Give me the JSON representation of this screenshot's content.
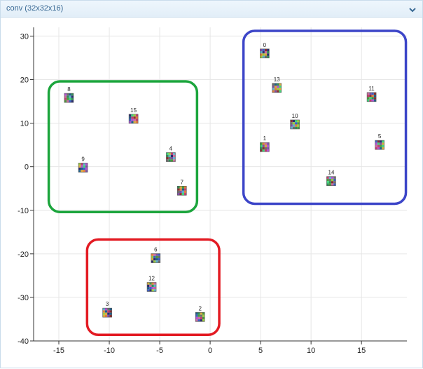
{
  "panel": {
    "title": "conv (32x32x16)",
    "collapse_icon": "chevron-down-icon"
  },
  "chart_data": {
    "type": "scatter",
    "title": "",
    "xlabel": "",
    "ylabel": "",
    "xlim": [
      -17.5,
      19.5
    ],
    "ylim": [
      -40,
      32
    ],
    "grid": true,
    "x_ticks": [
      -15,
      -10,
      -5,
      0,
      5,
      10,
      15
    ],
    "y_ticks": [
      30,
      20,
      10,
      0,
      -10,
      -20,
      -30,
      -40
    ],
    "points": [
      {
        "label": "0",
        "x": 5.4,
        "y": 26.0
      },
      {
        "label": "1",
        "x": 5.4,
        "y": 4.5
      },
      {
        "label": "2",
        "x": -1.0,
        "y": -34.5
      },
      {
        "label": "3",
        "x": -10.2,
        "y": -33.5
      },
      {
        "label": "4",
        "x": -3.9,
        "y": 2.2
      },
      {
        "label": "5",
        "x": 16.8,
        "y": 5.0
      },
      {
        "label": "6",
        "x": -5.4,
        "y": -21.0
      },
      {
        "label": "7",
        "x": -2.8,
        "y": -5.5
      },
      {
        "label": "8",
        "x": -14.0,
        "y": 15.8
      },
      {
        "label": "9",
        "x": -12.6,
        "y": -0.2
      },
      {
        "label": "10",
        "x": 8.4,
        "y": 9.7
      },
      {
        "label": "11",
        "x": 16.0,
        "y": 16.0
      },
      {
        "label": "12",
        "x": -5.8,
        "y": -27.6
      },
      {
        "label": "13",
        "x": 6.6,
        "y": 18.1
      },
      {
        "label": "14",
        "x": 12.0,
        "y": -3.3
      },
      {
        "label": "15",
        "x": -7.6,
        "y": 11.0
      }
    ],
    "annotations": [
      {
        "shape": "rounded-rect",
        "color": "#1ba53c",
        "members": [
          "8",
          "15",
          "9",
          "4",
          "7"
        ]
      },
      {
        "shape": "rounded-rect",
        "color": "#3c45c8",
        "members": [
          "0",
          "13",
          "11",
          "10",
          "1",
          "5",
          "14"
        ]
      },
      {
        "shape": "rounded-rect",
        "color": "#e31b23",
        "members": [
          "6",
          "12",
          "3",
          "2"
        ]
      }
    ],
    "annotation_bounds": [
      {
        "x": [
          -16.0,
          -1.3
        ],
        "y": [
          -10.4,
          19.6
        ]
      },
      {
        "x": [
          3.3,
          19.4
        ],
        "y": [
          -8.5,
          31.2
        ]
      },
      {
        "x": [
          -12.2,
          0.9
        ],
        "y": [
          -38.6,
          -16.7
        ]
      }
    ],
    "marker": "pixel-thumbnail",
    "thumbnail_palette": [
      "#7b4fa3",
      "#2f8f55",
      "#c23b6e",
      "#3b5fc2",
      "#d6a83b",
      "#5fb0c9",
      "#8a2f2f",
      "#4a9a3b",
      "#b14fd1",
      "#2b2b6e",
      "#e07d3b",
      "#6e6e6e",
      "#3bd67a",
      "#c96b9c",
      "#1f5f8a",
      "#9cc93b"
    ]
  }
}
